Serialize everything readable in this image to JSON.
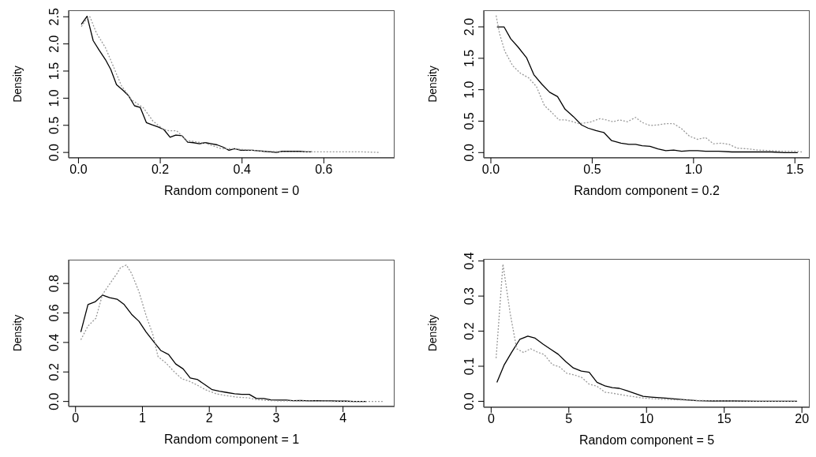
{
  "chart_data": [
    {
      "type": "line",
      "xlabel": "Random component =  0",
      "ylabel": "Density",
      "xlim": [
        -0.024,
        0.773
      ],
      "ylim": [
        -0.1,
        2.62
      ],
      "xticks": [
        {
          "value": 0,
          "label": "0.0"
        },
        {
          "value": 0.2,
          "label": "0.2"
        },
        {
          "value": 0.4,
          "label": "0.4"
        },
        {
          "value": 0.6,
          "label": "0.6"
        }
      ],
      "yticks": [
        {
          "value": 0,
          "label": "0.0"
        },
        {
          "value": 0.5,
          "label": "0.5"
        },
        {
          "value": 1,
          "label": "1.0"
        },
        {
          "value": 1.5,
          "label": "1.5"
        },
        {
          "value": 2,
          "label": "2.0"
        },
        {
          "value": 2.5,
          "label": "2.5"
        }
      ],
      "grid": false,
      "legend": false,
      "marker": "none",
      "series": [
        {
          "color": "#000000",
          "line_style": "solid",
          "x": [
            0.007,
            0.021,
            0.036,
            0.051,
            0.066,
            0.079,
            0.093,
            0.108,
            0.122,
            0.137,
            0.151,
            0.166,
            0.18,
            0.195,
            0.209,
            0.224,
            0.238,
            0.253,
            0.267,
            0.281,
            0.296,
            0.31,
            0.325,
            0.339,
            0.353,
            0.368,
            0.382,
            0.397,
            0.411,
            0.426,
            0.44,
            0.455,
            0.469,
            0.484,
            0.498,
            0.513,
            0.527,
            0.541,
            0.556,
            0.571
          ],
          "values": [
            2.36,
            2.51,
            2.06,
            1.88,
            1.71,
            1.53,
            1.25,
            1.15,
            1.05,
            0.86,
            0.83,
            0.55,
            0.51,
            0.47,
            0.42,
            0.28,
            0.32,
            0.31,
            0.19,
            0.18,
            0.16,
            0.18,
            0.16,
            0.14,
            0.1,
            0.04,
            0.07,
            0.04,
            0.04,
            0.04,
            0.03,
            0.02,
            0.01,
            0,
            0.02,
            0.02,
            0.02,
            0.02,
            0.01,
            0.01
          ]
        },
        {
          "color": "#999999",
          "line_style": "dotted",
          "x": [
            0.007,
            0.021,
            0.028,
            0.044,
            0.066,
            0.085,
            0.105,
            0.13,
            0.159,
            0.182,
            0.207,
            0.221,
            0.24,
            0.265,
            0.31,
            0.349,
            0.375,
            0.407,
            0.439,
            0.471,
            0.503,
            0.567,
            0.632,
            0.696,
            0.738
          ],
          "values": [
            2.32,
            2.47,
            2.5,
            2.2,
            1.93,
            1.59,
            1.23,
            0.97,
            0.82,
            0.58,
            0.43,
            0.4,
            0.4,
            0.22,
            0.17,
            0.07,
            0.07,
            0.05,
            0.03,
            0.02,
            0.01,
            0.01,
            0.01,
            0.01,
            0
          ]
        }
      ]
    },
    {
      "type": "line",
      "xlabel": "Random component =  0.2",
      "ylabel": "Density",
      "xlim": [
        -0.035,
        1.573
      ],
      "ylim": [
        -0.084,
        2.264
      ],
      "xticks": [
        {
          "value": 0,
          "label": "0.0"
        },
        {
          "value": 0.5,
          "label": "0.5"
        },
        {
          "value": 1,
          "label": "1.0"
        },
        {
          "value": 1.5,
          "label": "1.5"
        }
      ],
      "yticks": [
        {
          "value": 0,
          "label": "0.0"
        },
        {
          "value": 0.5,
          "label": "0.5"
        },
        {
          "value": 1,
          "label": "1.0"
        },
        {
          "value": 1.5,
          "label": "1.5"
        },
        {
          "value": 2,
          "label": "2.0"
        }
      ],
      "grid": false,
      "legend": false,
      "marker": "none",
      "series": [
        {
          "color": "#000000",
          "line_style": "solid",
          "x": [
            0.03,
            0.065,
            0.098,
            0.134,
            0.176,
            0.212,
            0.251,
            0.29,
            0.329,
            0.366,
            0.408,
            0.447,
            0.479,
            0.518,
            0.557,
            0.596,
            0.642,
            0.681,
            0.714,
            0.746,
            0.785,
            0.824,
            0.863,
            0.902,
            0.941,
            0.98,
            1.02,
            1.059,
            1.124,
            1.189,
            1.254,
            1.319,
            1.384,
            1.449,
            1.514
          ],
          "values": [
            2.0,
            2.0,
            1.81,
            1.68,
            1.51,
            1.24,
            1.09,
            0.96,
            0.89,
            0.69,
            0.57,
            0.44,
            0.39,
            0.35,
            0.32,
            0.19,
            0.15,
            0.13,
            0.13,
            0.11,
            0.1,
            0.06,
            0.03,
            0.04,
            0.02,
            0.03,
            0.03,
            0.02,
            0.02,
            0.01,
            0.01,
            0.01,
            0.01,
            0,
            0
          ]
        },
        {
          "color": "#999999",
          "line_style": "dotted",
          "x": [
            0.026,
            0.043,
            0.069,
            0.108,
            0.147,
            0.186,
            0.225,
            0.264,
            0.303,
            0.336,
            0.368,
            0.395,
            0.434,
            0.486,
            0.538,
            0.57,
            0.603,
            0.635,
            0.674,
            0.714,
            0.746,
            0.785,
            0.824,
            0.863,
            0.902,
            0.941,
            0.98,
            1.02,
            1.059,
            1.098,
            1.137,
            1.176,
            1.215,
            1.267,
            1.319,
            1.384,
            1.449,
            1.501,
            1.534
          ],
          "values": [
            2.18,
            1.89,
            1.61,
            1.38,
            1.26,
            1.19,
            1.05,
            0.75,
            0.63,
            0.52,
            0.52,
            0.5,
            0.46,
            0.48,
            0.54,
            0.52,
            0.49,
            0.52,
            0.49,
            0.56,
            0.48,
            0.43,
            0.44,
            0.46,
            0.46,
            0.38,
            0.26,
            0.21,
            0.24,
            0.14,
            0.15,
            0.13,
            0.07,
            0.06,
            0.04,
            0.03,
            0.02,
            0.02,
            0.01
          ]
        }
      ]
    },
    {
      "type": "line",
      "xlabel": "Random component =  1",
      "ylabel": "Density",
      "xlim": [
        -0.103,
        4.771
      ],
      "ylim": [
        -0.034,
        0.961
      ],
      "xticks": [
        0,
        1,
        2,
        3,
        4
      ],
      "yticks": [
        {
          "value": 0,
          "label": "0.0"
        },
        {
          "value": 0.2,
          "label": "0.2"
        },
        {
          "value": 0.4,
          "label": "0.4"
        },
        {
          "value": 0.6,
          "label": "0.6"
        },
        {
          "value": 0.8,
          "label": "0.8"
        }
      ],
      "grid": false,
      "legend": false,
      "marker": "none",
      "series": [
        {
          "color": "#000000",
          "line_style": "solid",
          "x": [
            0.079,
            0.186,
            0.292,
            0.403,
            0.51,
            0.621,
            0.727,
            0.838,
            0.949,
            1.055,
            1.166,
            1.273,
            1.391,
            1.498,
            1.609,
            1.715,
            1.826,
            1.937,
            2.043,
            2.15,
            2.261,
            2.379,
            2.486,
            2.597,
            2.704,
            2.814,
            2.921,
            3.032,
            3.15,
            3.249,
            3.368,
            3.486,
            3.585,
            3.704,
            3.822,
            3.921,
            4.04,
            4.158,
            4.348
          ],
          "values": [
            0.471,
            0.657,
            0.675,
            0.721,
            0.704,
            0.693,
            0.657,
            0.591,
            0.543,
            0.471,
            0.407,
            0.346,
            0.318,
            0.254,
            0.221,
            0.159,
            0.148,
            0.113,
            0.08,
            0.07,
            0.061,
            0.052,
            0.048,
            0.048,
            0.02,
            0.02,
            0.011,
            0.009,
            0.009,
            0.005,
            0.007,
            0.004,
            0.005,
            0.004,
            0.004,
            0.002,
            0.002,
            0,
            0
          ]
        },
        {
          "color": "#999999",
          "line_style": "dotted",
          "x": [
            0.079,
            0.186,
            0.304,
            0.403,
            0.51,
            0.621,
            0.672,
            0.759,
            0.838,
            0.949,
            1.055,
            1.154,
            1.233,
            1.352,
            1.47,
            1.589,
            1.708,
            1.826,
            1.945,
            2.103,
            2.261,
            2.419,
            2.577,
            2.696,
            2.854,
            3.051,
            3.328,
            3.605,
            3.921,
            4.316,
            4.593
          ],
          "values": [
            0.418,
            0.511,
            0.564,
            0.725,
            0.796,
            0.868,
            0.907,
            0.925,
            0.868,
            0.743,
            0.582,
            0.457,
            0.305,
            0.261,
            0.204,
            0.154,
            0.136,
            0.109,
            0.079,
            0.052,
            0.039,
            0.029,
            0.025,
            0.014,
            0.007,
            0.004,
            0.004,
            0.002,
            0,
            0,
            0
          ]
        }
      ]
    },
    {
      "type": "line",
      "xlabel": "Random component =  5",
      "ylabel": "Density",
      "xlim": [
        -0.475,
        20.5
      ],
      "ylim": [
        -0.017,
        0.406
      ],
      "xticks": [
        0,
        5,
        10,
        15,
        20
      ],
      "yticks": [
        {
          "value": 0,
          "label": "0.0"
        },
        {
          "value": 0.1,
          "label": "0.1"
        },
        {
          "value": 0.2,
          "label": "0.2"
        },
        {
          "value": 0.3,
          "label": "0.3"
        },
        {
          "value": 0.4,
          "label": "0.4"
        }
      ],
      "grid": false,
      "legend": false,
      "marker": "none",
      "series": [
        {
          "color": "#000000",
          "line_style": "solid",
          "x": [
            0.37,
            0.83,
            1.31,
            1.85,
            2.36,
            2.83,
            3.34,
            3.85,
            4.32,
            4.81,
            5.29,
            5.8,
            6.31,
            6.81,
            7.32,
            7.8,
            8.25,
            8.76,
            9.27,
            9.78,
            10.29,
            11.22,
            12.24,
            13.25,
            14.27,
            15.46,
            17.15,
            19.69
          ],
          "values": [
            0.054,
            0.103,
            0.139,
            0.177,
            0.186,
            0.18,
            0.163,
            0.148,
            0.134,
            0.113,
            0.095,
            0.086,
            0.083,
            0.054,
            0.044,
            0.039,
            0.037,
            0.03,
            0.022,
            0.014,
            0.012,
            0.009,
            0.005,
            0.002,
            0.001,
            0.001,
            0,
            0
          ]
        },
        {
          "color": "#999999",
          "line_style": "dotted",
          "x": [
            0.32,
            0.76,
            1.22,
            1.64,
            2.1,
            2.53,
            2.95,
            3.42,
            3.93,
            4.41,
            4.86,
            5.37,
            5.83,
            6.31,
            6.81,
            7.32,
            7.83,
            8.34,
            9.02,
            9.86,
            10.88,
            12.07,
            13.76,
            15.46,
            17.15,
            19.69
          ],
          "values": [
            0.123,
            0.391,
            0.252,
            0.15,
            0.139,
            0.15,
            0.141,
            0.133,
            0.105,
            0.098,
            0.08,
            0.075,
            0.068,
            0.049,
            0.043,
            0.026,
            0.023,
            0.019,
            0.014,
            0.009,
            0.006,
            0.004,
            0.002,
            0.001,
            0,
            0
          ]
        }
      ]
    }
  ]
}
